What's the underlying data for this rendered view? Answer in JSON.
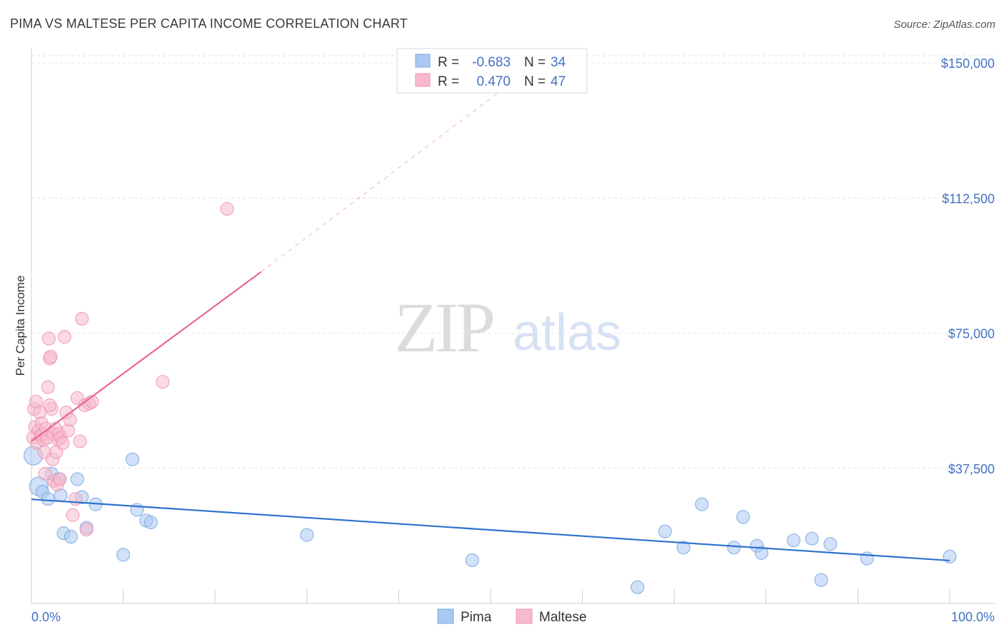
{
  "chart_data": {
    "type": "scatter",
    "title": "PIMA VS MALTESE PER CAPITA INCOME CORRELATION CHART",
    "source": "Source: ZipAtlas.com",
    "ylabel": "Per Capita Income",
    "xlabel": "",
    "x_tick_labels": [
      "0.0%",
      "100.0%"
    ],
    "y_tick_labels": [
      "$37,500",
      "$75,000",
      "$112,500",
      "$150,000"
    ],
    "y_ticks": [
      37500,
      75000,
      112500,
      150000
    ],
    "xlim": [
      0,
      100
    ],
    "ylim": [
      0,
      154000
    ],
    "watermark": {
      "zip": "ZIP",
      "atlas": "atlas"
    },
    "colors": {
      "pima_fill": "#a9c9f2",
      "pima_stroke": "#7aa7e0",
      "pima_line": "#2e73cc",
      "maltese_fill": "#f7b9cc",
      "maltese_stroke": "#ee94b1",
      "maltese_line": "#e8678f",
      "grid": "#e3e3e3",
      "axis_text": "#4472c4"
    },
    "legend": {
      "r_label": "R =",
      "n_label": "N =",
      "entries": [
        {
          "name": "Pima",
          "r": "-0.683",
          "n": "34"
        },
        {
          "name": "Maltese",
          "r": "0.470",
          "n": "47"
        }
      ]
    },
    "series": [
      {
        "name": "Pima",
        "regression": {
          "x0": 0,
          "y0": 28900,
          "x1": 100,
          "y1": 11900,
          "dashed_extension": false
        },
        "points": [
          [
            0.2,
            41000
          ],
          [
            0.8,
            32500
          ],
          [
            1.2,
            31000
          ],
          [
            1.8,
            29000
          ],
          [
            3.2,
            30000
          ],
          [
            2.2,
            36000
          ],
          [
            3.0,
            34500
          ],
          [
            5.0,
            34500
          ],
          [
            5.5,
            29500
          ],
          [
            3.5,
            19500
          ],
          [
            4.3,
            18500
          ],
          [
            6.0,
            21000
          ],
          [
            7.0,
            27500
          ],
          [
            10.0,
            13500
          ],
          [
            11.0,
            40000
          ],
          [
            11.5,
            26000
          ],
          [
            12.5,
            23000
          ],
          [
            13.0,
            22500
          ],
          [
            30.0,
            19000
          ],
          [
            48.0,
            12000
          ],
          [
            66.0,
            4500
          ],
          [
            69.0,
            20000
          ],
          [
            71.0,
            15500
          ],
          [
            73.0,
            27500
          ],
          [
            76.5,
            15500
          ],
          [
            77.5,
            24000
          ],
          [
            79.0,
            16000
          ],
          [
            79.5,
            14000
          ],
          [
            83.0,
            17500
          ],
          [
            85.0,
            18000
          ],
          [
            86.0,
            6500
          ],
          [
            87.0,
            16500
          ],
          [
            91.0,
            12500
          ],
          [
            100.0,
            13000
          ]
        ]
      },
      {
        "name": "Maltese",
        "regression": {
          "x0": 0,
          "y0": 45000,
          "x1": 25,
          "y1": 92000,
          "dashed_extension": true,
          "dash_x1": 52,
          "dash_y1": 144000
        },
        "points": [
          [
            0.2,
            46000
          ],
          [
            0.3,
            54000
          ],
          [
            0.4,
            49000
          ],
          [
            0.5,
            56000
          ],
          [
            0.6,
            44500
          ],
          [
            0.8,
            48000
          ],
          [
            0.9,
            53000
          ],
          [
            1.0,
            46500
          ],
          [
            1.1,
            50000
          ],
          [
            1.2,
            47000
          ],
          [
            1.3,
            45500
          ],
          [
            1.4,
            42000
          ],
          [
            1.5,
            36000
          ],
          [
            1.6,
            48500
          ],
          [
            1.7,
            46000
          ],
          [
            1.8,
            60000
          ],
          [
            1.9,
            73500
          ],
          [
            2.0,
            68000
          ],
          [
            2.1,
            68500
          ],
          [
            2.2,
            54000
          ],
          [
            2.3,
            40000
          ],
          [
            2.4,
            47000
          ],
          [
            2.5,
            34000
          ],
          [
            2.6,
            48500
          ],
          [
            2.7,
            42000
          ],
          [
            2.8,
            33000
          ],
          [
            2.9,
            45500
          ],
          [
            3.0,
            47000
          ],
          [
            3.1,
            34500
          ],
          [
            3.2,
            46000
          ],
          [
            3.4,
            44500
          ],
          [
            3.6,
            74000
          ],
          [
            3.8,
            53000
          ],
          [
            4.0,
            48000
          ],
          [
            4.2,
            51000
          ],
          [
            4.5,
            24500
          ],
          [
            4.8,
            29000
          ],
          [
            5.0,
            57000
          ],
          [
            5.3,
            45000
          ],
          [
            5.5,
            79000
          ],
          [
            5.8,
            55000
          ],
          [
            6.0,
            20500
          ],
          [
            6.3,
            55500
          ],
          [
            6.6,
            56000
          ],
          [
            14.3,
            61500
          ],
          [
            21.3,
            109500
          ],
          [
            2.0,
            55000
          ]
        ]
      }
    ]
  }
}
